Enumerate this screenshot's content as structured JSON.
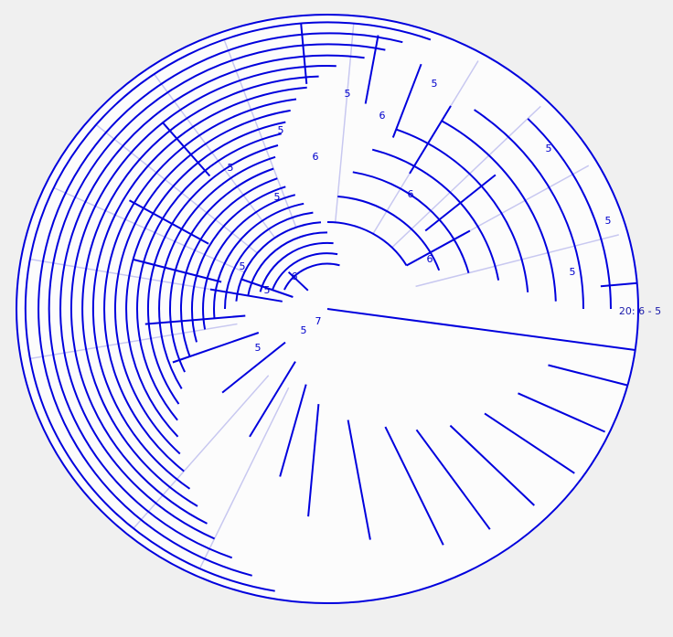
{
  "colors": {
    "background": "#f0f0f0",
    "disc_fill": "#fcfcfc",
    "branch": "#0000dd",
    "guide": "#c8c8f0",
    "label_text": "#0000cc",
    "tip_text": "#1a1aaa"
  },
  "diagram": {
    "type": "circular-dendrogram",
    "tip_label": "20: 6 - 5",
    "node_labels": [
      "7",
      "6",
      "6",
      "6",
      "6",
      "6",
      "6",
      "5",
      "5",
      "5",
      "5",
      "5",
      "5",
      "5",
      "5",
      "5",
      "5"
    ]
  }
}
